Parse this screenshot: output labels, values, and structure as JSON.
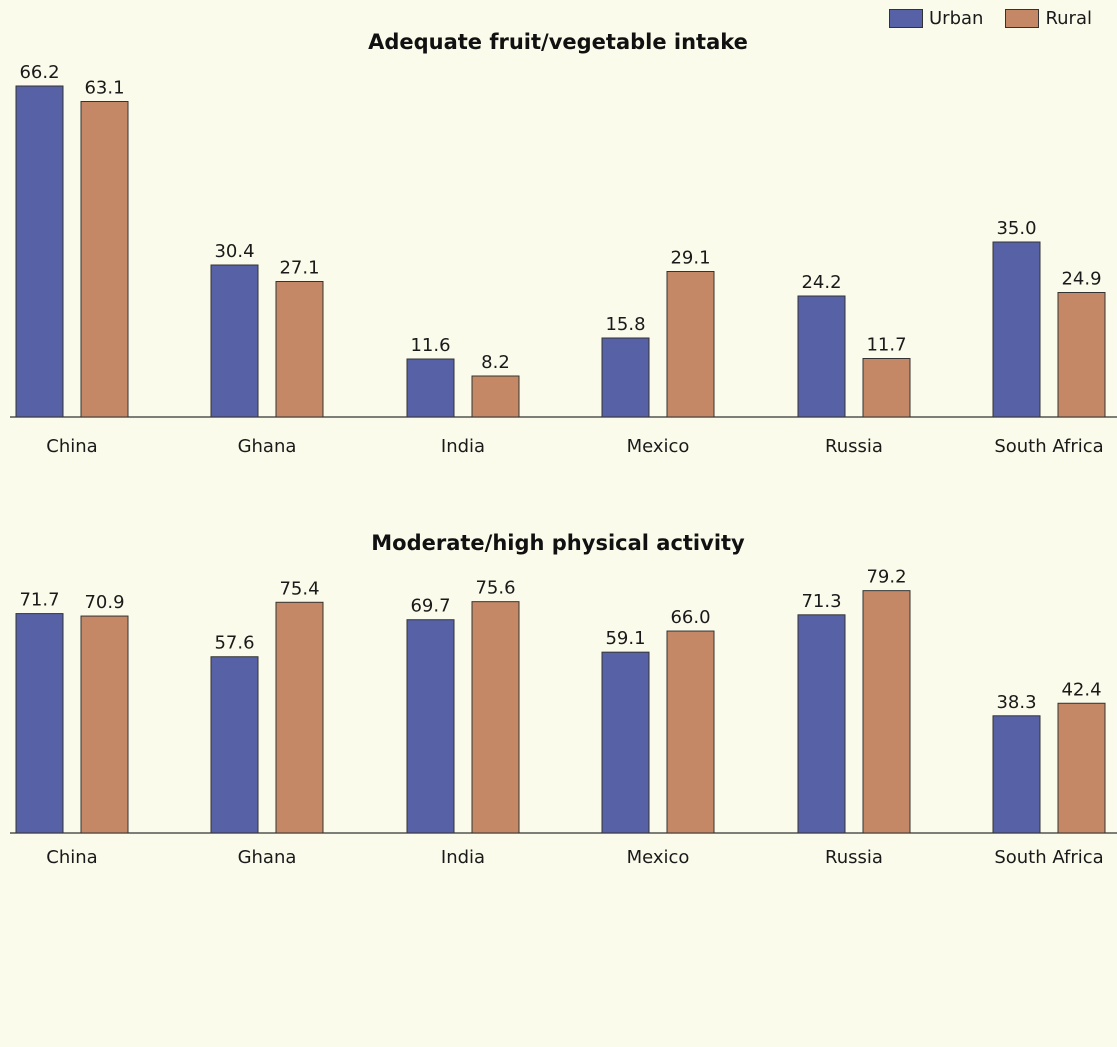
{
  "legend": {
    "urban_label": "Urban",
    "rural_label": "Rural"
  },
  "colors": {
    "urban": "#5762a6",
    "rural": "#c48866",
    "background": "#fbfbeb"
  },
  "chart_data": [
    {
      "type": "bar",
      "title": "Adequate fruit/vegetable intake",
      "categories": [
        "China",
        "Ghana",
        "India",
        "Mexico",
        "Russia",
        "South Africa"
      ],
      "series": [
        {
          "name": "Urban",
          "values": [
            66.2,
            30.4,
            11.6,
            15.8,
            24.2,
            35.0
          ],
          "labels": [
            "66.2",
            "30.4",
            "11.6",
            "15.8",
            "24.2",
            "35.0"
          ]
        },
        {
          "name": "Rural",
          "values": [
            63.1,
            27.1,
            8.2,
            29.1,
            11.7,
            24.9
          ],
          "labels": [
            "63.1",
            "27.1",
            "8.2",
            "29.1",
            "11.7",
            "24.9"
          ]
        }
      ],
      "ylim": [
        0,
        70
      ],
      "grid": false,
      "legend_position": "top-right"
    },
    {
      "type": "bar",
      "title": "Moderate/high physical activity",
      "categories": [
        "China",
        "Ghana",
        "India",
        "Mexico",
        "Russia",
        "South Africa"
      ],
      "series": [
        {
          "name": "Urban",
          "values": [
            71.7,
            57.6,
            69.7,
            59.1,
            71.3,
            38.3
          ],
          "labels": [
            "71.7",
            "57.6",
            "69.7",
            "59.1",
            "71.3",
            "38.3"
          ]
        },
        {
          "name": "Rural",
          "values": [
            70.9,
            75.4,
            75.6,
            66.0,
            79.2,
            42.4
          ],
          "labels": [
            "70.9",
            "75.4",
            "75.6",
            "66.0",
            "79.2",
            "42.4"
          ]
        }
      ],
      "ylim": [
        0,
        85
      ],
      "grid": false,
      "legend_position": "top-right"
    }
  ]
}
